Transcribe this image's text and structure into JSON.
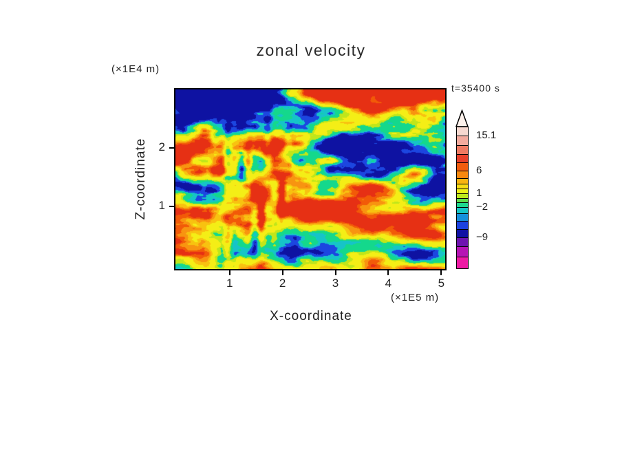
{
  "figure": {
    "title": "zonal velocity",
    "time_label": "t=35400 s",
    "x_axis": {
      "label": "X-coordinate",
      "unit": "(×1E5 m)"
    },
    "y_axis": {
      "label": "Z-coordinate",
      "unit": "(×1E4 m)"
    }
  },
  "chart_data": {
    "type": "heatmap",
    "title": "zonal velocity",
    "xlabel": "X-coordinate",
    "ylabel": "Z-coordinate",
    "x_unit": "(×1E5 m)",
    "y_unit": "(×1E4 m)",
    "annotation": "t=35400 s",
    "grid": false,
    "legend_position": "right",
    "x_ticks": [
      "1",
      "2",
      "3",
      "4",
      "5"
    ],
    "x_tick_values": [
      1,
      2,
      3,
      4,
      5
    ],
    "y_ticks": [
      "1",
      "2"
    ],
    "y_tick_values": [
      1,
      2
    ],
    "x_range": [
      -0.05,
      5.1
    ],
    "y_range": [
      -0.09,
      3.02
    ],
    "colorbar": {
      "position": "right",
      "labeled_levels": [
        "15.1",
        "6",
        "1",
        "−2",
        "−9"
      ],
      "segments": [
        {
          "color": "#f7d9d0",
          "h": 12,
          "label": ""
        },
        {
          "color": "#f3ab9e",
          "h": 14,
          "label": "15.1"
        },
        {
          "color": "#ee7a62",
          "h": 13,
          "label": ""
        },
        {
          "color": "#e8402a",
          "h": 12,
          "label": ""
        },
        {
          "color": "#f25c0e",
          "h": 12,
          "label": ""
        },
        {
          "color": "#f8880e",
          "h": 11,
          "label": "6"
        },
        {
          "color": "#f8b410",
          "h": 8,
          "label": ""
        },
        {
          "color": "#f8dc14",
          "h": 7,
          "label": ""
        },
        {
          "color": "#eef018",
          "h": 7,
          "label": ""
        },
        {
          "color": "#bce81e",
          "h": 7,
          "label": "1"
        },
        {
          "color": "#5ede4e",
          "h": 6,
          "label": ""
        },
        {
          "color": "#1ed88e",
          "h": 7,
          "label": ""
        },
        {
          "color": "#16c6c6",
          "h": 9,
          "label": "−2"
        },
        {
          "color": "#1690dc",
          "h": 11,
          "label": ""
        },
        {
          "color": "#1c42e0",
          "h": 12,
          "label": ""
        },
        {
          "color": "#1012a4",
          "h": 12,
          "label": ""
        },
        {
          "color": "#6e14b0",
          "h": 13,
          "label": "−9"
        },
        {
          "color": "#b614b4",
          "h": 15,
          "label": ""
        },
        {
          "color": "#ee1aa4",
          "h": 17,
          "label": ""
        }
      ]
    },
    "field": {
      "description": "turbulent 2D zonal-velocity cross-section, filled-contour style (synthetic approximation of the plotted field)",
      "seed": 7,
      "octaves": 5,
      "thresholds": [
        -0.62,
        -0.46,
        -0.32,
        -0.1,
        0.02,
        0.3,
        0.42,
        0.55,
        0.68
      ],
      "colors": [
        "#0e12a2",
        "#1c46e0",
        "#16c4c8",
        "#14d88c",
        "#c0e61a",
        "#f4ee16",
        "#f8c210",
        "#f89410",
        "#f25a08",
        "#e63014"
      ]
    }
  }
}
